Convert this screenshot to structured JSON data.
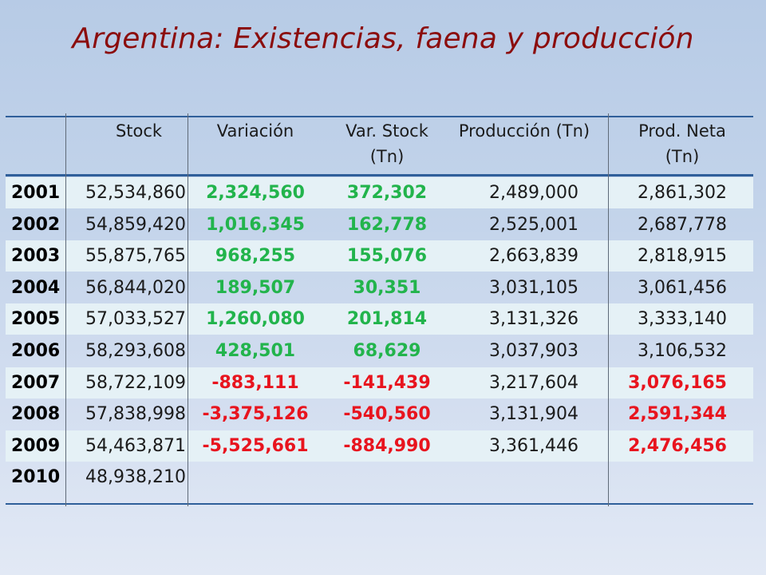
{
  "title": "Argentina: Existencias, faena y producción",
  "headers": {
    "stock": "Stock",
    "variacion": "Variación",
    "var_stock_1": "Var. Stock",
    "var_stock_2": "(Tn)",
    "produccion": "Producción (Tn)",
    "prod_neta_1": "Prod. Neta",
    "prod_neta_2": "(Tn)"
  },
  "rows": [
    {
      "year": "2001",
      "stock": "52,534,860",
      "variacion": "2,324,560",
      "var_stock": "372,302",
      "produccion": "2,489,000",
      "prod_neta": "2,861,302"
    },
    {
      "year": "2002",
      "stock": "54,859,420",
      "variacion": "1,016,345",
      "var_stock": "162,778",
      "produccion": "2,525,001",
      "prod_neta": "2,687,778"
    },
    {
      "year": "2003",
      "stock": "55,875,765",
      "variacion": "968,255",
      "var_stock": "155,076",
      "produccion": "2,663,839",
      "prod_neta": "2,818,915"
    },
    {
      "year": "2004",
      "stock": "56,844,020",
      "variacion": "189,507",
      "var_stock": "30,351",
      "produccion": "3,031,105",
      "prod_neta": "3,061,456"
    },
    {
      "year": "2005",
      "stock": "57,033,527",
      "variacion": "1,260,080",
      "var_stock": "201,814",
      "produccion": "3,131,326",
      "prod_neta": "3,333,140"
    },
    {
      "year": "2006",
      "stock": "58,293,608",
      "variacion": "428,501",
      "var_stock": "68,629",
      "produccion": "3,037,903",
      "prod_neta": "3,106,532"
    },
    {
      "year": "2007",
      "stock": "58,722,109",
      "variacion": "-883,111",
      "var_stock": "-141,439",
      "produccion": "3,217,604",
      "prod_neta": "3,076,165"
    },
    {
      "year": "2008",
      "stock": "57,838,998",
      "variacion": "-3,375,126",
      "var_stock": "-540,560",
      "produccion": "3,131,904",
      "prod_neta": "2,591,344"
    },
    {
      "year": "2009",
      "stock": "54,463,871",
      "variacion": "-5,525,661",
      "var_stock": "-884,990",
      "produccion": "3,361,446",
      "prod_neta": "2,476,456"
    },
    {
      "year": "2010",
      "stock": "48,938,210",
      "variacion": "",
      "var_stock": "",
      "produccion": "",
      "prod_neta": ""
    }
  ],
  "colors": {
    "title": "#8b0d0d",
    "positive": "#22b44c",
    "negative": "#e8141e",
    "row_shade": "#e5f1f6",
    "rule": "#2f5f9a"
  }
}
